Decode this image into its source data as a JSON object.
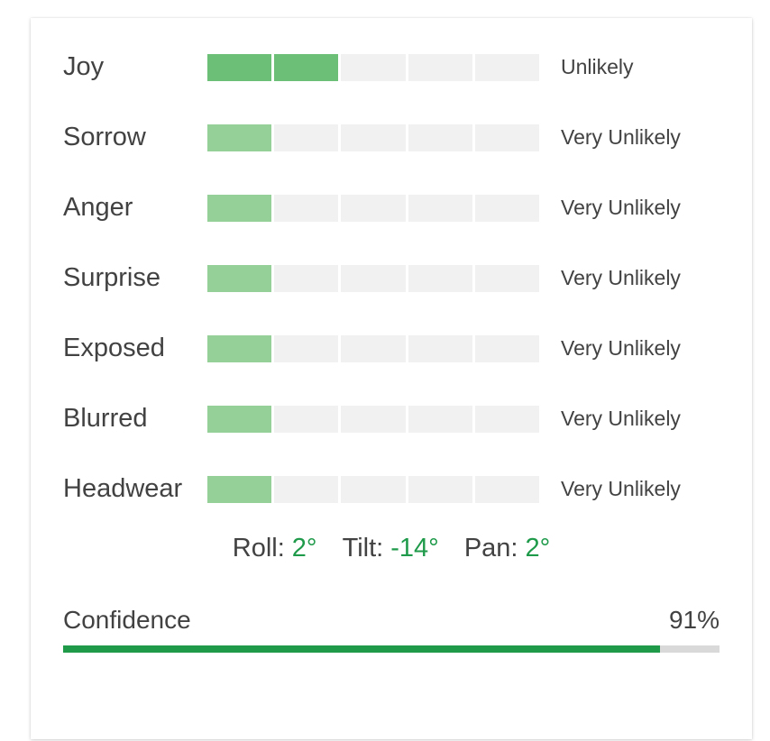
{
  "attributes": [
    {
      "label": "Joy",
      "value": "Unlikely",
      "level": 2,
      "max_level": 5
    },
    {
      "label": "Sorrow",
      "value": "Very Unlikely",
      "level": 1,
      "max_level": 5
    },
    {
      "label": "Anger",
      "value": "Very Unlikely",
      "level": 1,
      "max_level": 5
    },
    {
      "label": "Surprise",
      "value": "Very Unlikely",
      "level": 1,
      "max_level": 5
    },
    {
      "label": "Exposed",
      "value": "Very Unlikely",
      "level": 1,
      "max_level": 5
    },
    {
      "label": "Blurred",
      "value": "Very Unlikely",
      "level": 1,
      "max_level": 5
    },
    {
      "label": "Headwear",
      "value": "Very Unlikely",
      "level": 1,
      "max_level": 5
    }
  ],
  "angles": {
    "roll_label": "Roll:",
    "roll_value": "2°",
    "tilt_label": "Tilt:",
    "tilt_value": "-14°",
    "pan_label": "Pan:",
    "pan_value": "2°"
  },
  "confidence": {
    "label": "Confidence",
    "value_text": "91%",
    "fraction": 0.91
  },
  "colors": {
    "level_strong": "#6cbf76",
    "level_light": "#94d098",
    "level_empty": "#f1f1f1",
    "angle_value": "#1f9a4a",
    "confidence_fill": "#1e9a48",
    "confidence_track": "#d9d9d9"
  }
}
